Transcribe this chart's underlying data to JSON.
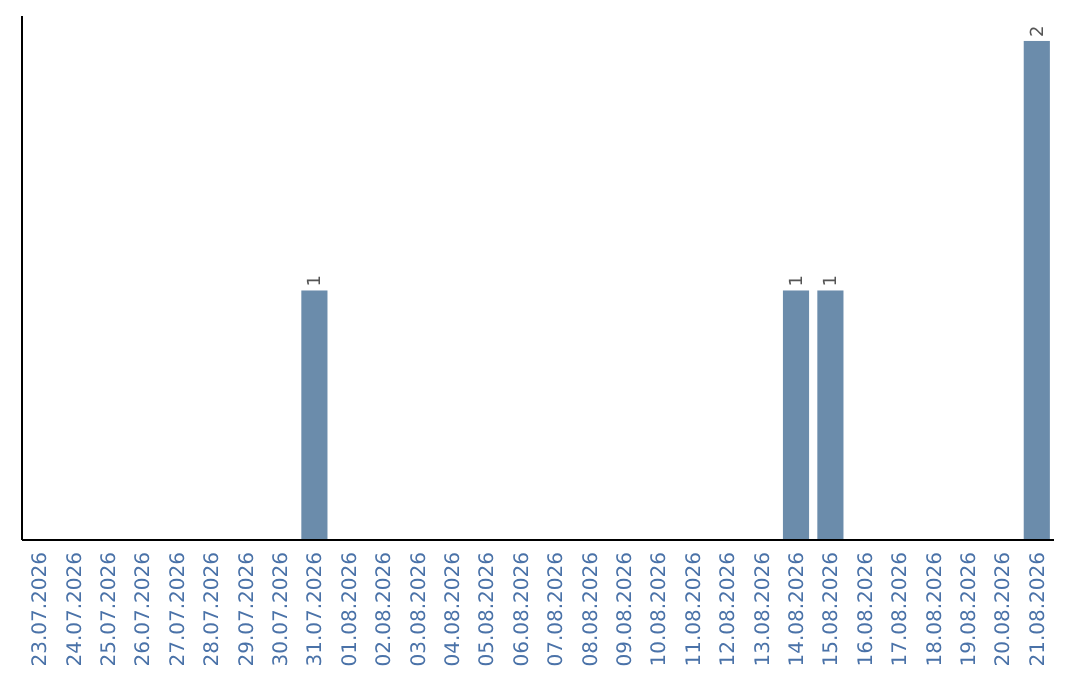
{
  "chart_data": {
    "type": "bar",
    "categories": [
      "23.07.2026",
      "24.07.2026",
      "25.07.2026",
      "26.07.2026",
      "27.07.2026",
      "28.07.2026",
      "29.07.2026",
      "30.07.2026",
      "31.07.2026",
      "01.08.2026",
      "02.08.2026",
      "03.08.2026",
      "04.08.2026",
      "05.08.2026",
      "06.08.2026",
      "07.08.2026",
      "08.08.2026",
      "09.08.2026",
      "10.08.2026",
      "11.08.2026",
      "12.08.2026",
      "13.08.2026",
      "14.08.2026",
      "15.08.2026",
      "16.08.2026",
      "17.08.2026",
      "18.08.2026",
      "19.08.2026",
      "20.08.2026",
      "21.08.2026"
    ],
    "values": [
      0,
      0,
      0,
      0,
      0,
      0,
      0,
      0,
      1,
      0,
      0,
      0,
      0,
      0,
      0,
      0,
      0,
      0,
      0,
      0,
      0,
      0,
      1,
      1,
      0,
      0,
      0,
      0,
      0,
      2
    ],
    "value_labels": [
      null,
      null,
      null,
      null,
      null,
      null,
      null,
      null,
      "1",
      null,
      null,
      null,
      null,
      null,
      null,
      null,
      null,
      null,
      null,
      null,
      null,
      null,
      "1",
      "1",
      null,
      null,
      null,
      null,
      null,
      "2"
    ],
    "color": "#6b8cab"
  }
}
